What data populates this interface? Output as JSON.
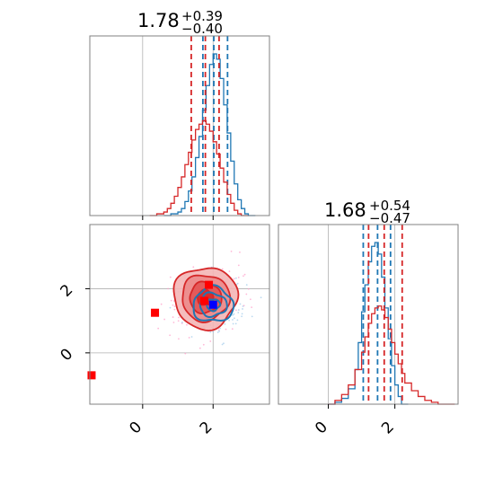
{
  "chart_data": [
    {
      "type": "histogram",
      "panel": "marginal-param-1",
      "title": {
        "value": "1.78",
        "plus": "+0.39",
        "minus": "−0.40"
      },
      "xlim": [
        -1.5,
        3.6
      ],
      "grid": true,
      "series": [
        {
          "name": "",
          "color": "#1f77b4",
          "quantiles": [
            1.71,
            2.02,
            2.41
          ],
          "bins": [
            0.6,
            0.8,
            1.0,
            1.1,
            1.2,
            1.3,
            1.4,
            1.5,
            1.6,
            1.7,
            1.8,
            1.9,
            2.0,
            2.1,
            2.2,
            2.3,
            2.4,
            2.5,
            2.6,
            2.7,
            2.8,
            2.9,
            3.0,
            3.2
          ],
          "counts": [
            0,
            1,
            2,
            4,
            8,
            14,
            22,
            33,
            45,
            60,
            74,
            86,
            92,
            89,
            78,
            63,
            47,
            31,
            18,
            9,
            4,
            1,
            0
          ]
        },
        {
          "name": "",
          "color": "#d62728",
          "quantiles": [
            1.38,
            1.78,
            2.17
          ],
          "bins": [
            0.2,
            0.4,
            0.6,
            0.7,
            0.8,
            0.9,
            1.0,
            1.1,
            1.2,
            1.3,
            1.4,
            1.5,
            1.6,
            1.7,
            1.8,
            1.9,
            2.0,
            2.1,
            2.2,
            2.3,
            2.4,
            2.5,
            2.6,
            2.7,
            2.8,
            3.0
          ],
          "counts": [
            0,
            1,
            2,
            4,
            7,
            11,
            16,
            22,
            29,
            36,
            43,
            49,
            52,
            54,
            52,
            48,
            42,
            35,
            27,
            19,
            12,
            7,
            3,
            1,
            0
          ]
        }
      ]
    },
    {
      "type": "histogram",
      "panel": "marginal-param-2",
      "title": {
        "value": "1.68",
        "plus": "+0.54",
        "minus": "−0.47"
      },
      "xlim": [
        -1.5,
        3.9
      ],
      "grid": true,
      "series": [
        {
          "name": "",
          "color": "#1f77b4",
          "quantiles": [
            1.05,
            1.48,
            1.87
          ],
          "bins": [
            0.0,
            0.2,
            0.4,
            0.6,
            0.8,
            0.9,
            1.0,
            1.1,
            1.2,
            1.3,
            1.4,
            1.5,
            1.6,
            1.7,
            1.8,
            1.9,
            2.0,
            2.1,
            2.2,
            2.4
          ],
          "counts": [
            0,
            1,
            3,
            8,
            18,
            32,
            48,
            62,
            74,
            82,
            84,
            78,
            66,
            50,
            34,
            20,
            10,
            4,
            0
          ]
        },
        {
          "name": "",
          "color": "#d62728",
          "quantiles": [
            1.21,
            1.68,
            2.22
          ],
          "bins": [
            0.0,
            0.2,
            0.4,
            0.6,
            0.8,
            1.0,
            1.1,
            1.2,
            1.3,
            1.4,
            1.5,
            1.6,
            1.7,
            1.8,
            1.9,
            2.0,
            2.1,
            2.2,
            2.3,
            2.5,
            2.7,
            2.9,
            3.1,
            3.3,
            3.5,
            3.8
          ],
          "counts": [
            0,
            2,
            5,
            10,
            18,
            27,
            35,
            42,
            47,
            50,
            51,
            49,
            45,
            39,
            32,
            26,
            21,
            16,
            11,
            7,
            4,
            2,
            1,
            0,
            0
          ]
        }
      ]
    },
    {
      "type": "contour-2d",
      "panel": "joint-param-1-vs-param-2",
      "xlim": [
        -1.5,
        3.6
      ],
      "ylim": [
        -1.6,
        4.0
      ],
      "x_ticks": [
        "0",
        "2"
      ],
      "y_ticks": [
        "0",
        "2"
      ],
      "grid": true,
      "series": [
        {
          "name": "",
          "color": "#1f77b4",
          "center": [
            2.0,
            1.5
          ],
          "sigma": [
            0.38,
            0.36
          ],
          "levels": [
            0.5,
            1.0,
            1.5
          ]
        },
        {
          "name": "",
          "color": "#d62728",
          "center": [
            1.78,
            1.72
          ],
          "sigma": [
            0.45,
            0.48
          ],
          "levels": [
            0.5,
            1.0,
            1.5,
            2.0
          ]
        }
      ],
      "markers": [
        {
          "x": 1.88,
          "y": 2.12,
          "color": "#ff0000"
        },
        {
          "x": 1.75,
          "y": 1.62,
          "color": "#ff0000"
        },
        {
          "x": 0.35,
          "y": 1.25,
          "color": "#ff0000"
        },
        {
          "x": -1.45,
          "y": -0.7,
          "color": "#ff0000"
        },
        {
          "x": 2.0,
          "y": 1.5,
          "color": "#0000ff"
        }
      ]
    },
    {
      "panel": "bottom-x-axis-param-2",
      "x_ticks": [
        "0",
        "2"
      ]
    }
  ]
}
